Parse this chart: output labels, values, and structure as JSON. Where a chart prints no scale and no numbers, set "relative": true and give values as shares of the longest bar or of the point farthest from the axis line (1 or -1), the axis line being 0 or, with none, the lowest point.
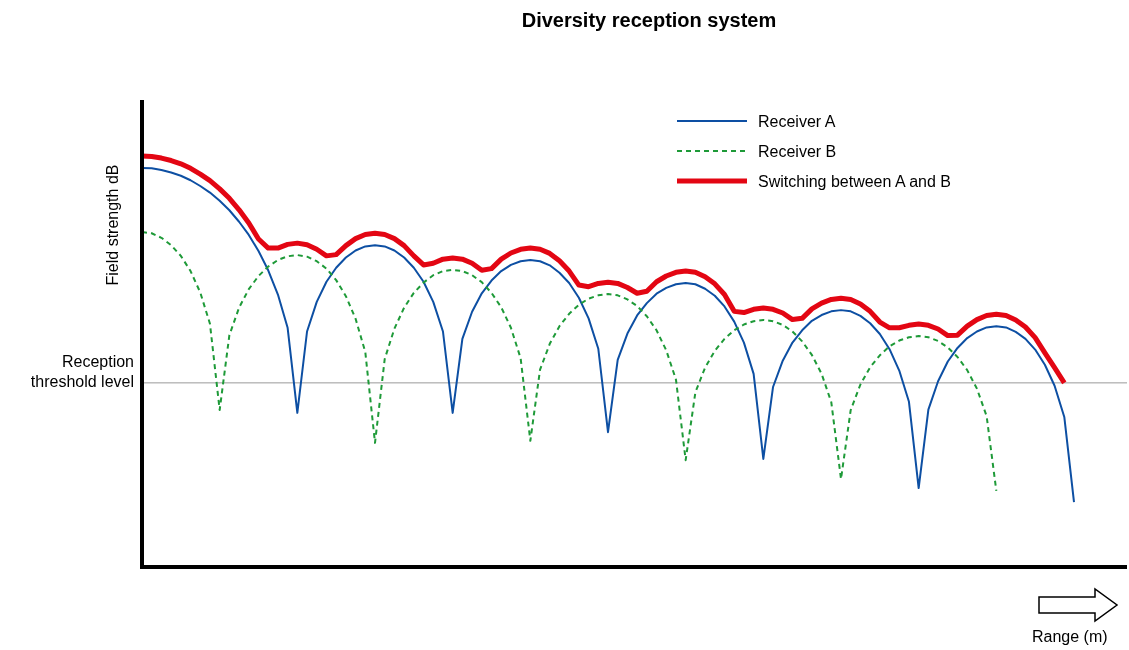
{
  "chart_data": {
    "type": "line",
    "title": "Diversity reception system",
    "ylabel": "Field strength dB",
    "xlabel": "Range (m)",
    "relative": true,
    "legend": "top right",
    "categories": [
      null,
      null,
      null,
      null,
      null,
      null,
      null,
      null,
      null,
      null,
      null,
      null,
      null,
      null,
      null,
      null,
      null,
      null,
      null,
      null,
      null,
      null,
      null,
      null,
      null,
      null,
      null,
      null,
      null,
      null,
      null,
      null,
      null,
      null,
      null,
      null,
      null,
      null,
      null,
      null,
      null,
      null,
      null,
      null,
      null,
      null,
      null,
      null,
      null,
      null,
      null,
      null,
      null,
      null,
      null,
      null,
      null,
      null,
      null,
      null,
      null,
      null,
      null,
      null,
      null,
      null,
      null,
      null,
      null,
      null,
      null,
      null,
      null,
      null,
      null,
      null,
      null,
      null,
      null,
      null,
      null,
      null,
      null,
      null,
      null,
      null,
      null,
      null,
      null,
      null,
      null,
      null,
      null,
      null,
      null,
      null,
      null
    ],
    "series": [
      {
        "name": "Receiver A",
        "color": "#0d4fa3",
        "line_style": "solid",
        "values": [
          0.971,
          0.97,
          0.966,
          0.96,
          0.952,
          0.941,
          0.927,
          0.911,
          0.891,
          0.868,
          0.84,
          0.808,
          0.769,
          0.722,
          0.663,
          0.582,
          0.375,
          0.573,
          0.645,
          0.694,
          0.728,
          0.753,
          0.77,
          0.78,
          0.783,
          0.78,
          0.77,
          0.753,
          0.728,
          0.694,
          0.645,
          0.573,
          0.375,
          0.555,
          0.621,
          0.666,
          0.697,
          0.72,
          0.735,
          0.744,
          0.747,
          0.744,
          0.734,
          0.716,
          0.691,
          0.655,
          0.605,
          0.531,
          0.328,
          0.504,
          0.568,
          0.612,
          0.642,
          0.665,
          0.679,
          0.688,
          0.691,
          0.688,
          0.677,
          0.66,
          0.634,
          0.597,
          0.546,
          0.47,
          0.263,
          0.438,
          0.502,
          0.546,
          0.576,
          0.599,
          0.613,
          0.622,
          0.625,
          0.622,
          0.611,
          0.593,
          0.567,
          0.53,
          0.478,
          0.402,
          0.192,
          0.383,
          0.452,
          0.5,
          0.533,
          0.557,
          0.573,
          0.583,
          0.586,
          0.583,
          0.572,
          0.555,
          0.529,
          0.492,
          0.441,
          0.365,
          0.158
        ]
      },
      {
        "name": "Receiver B",
        "color": "#1e9a38",
        "line_style": "dashed",
        "values": [
          0.815,
          0.812,
          0.801,
          0.783,
          0.757,
          0.72,
          0.668,
          0.592,
          0.382,
          0.564,
          0.631,
          0.676,
          0.708,
          0.731,
          0.747,
          0.756,
          0.759,
          0.755,
          0.744,
          0.726,
          0.698,
          0.659,
          0.604,
          0.523,
          0.302,
          0.506,
          0.58,
          0.631,
          0.667,
          0.692,
          0.71,
          0.72,
          0.723,
          0.72,
          0.71,
          0.693,
          0.667,
          0.632,
          0.582,
          0.508,
          0.307,
          0.48,
          0.543,
          0.586,
          0.616,
          0.638,
          0.653,
          0.661,
          0.664,
          0.661,
          0.651,
          0.635,
          0.61,
          0.576,
          0.527,
          0.456,
          0.26,
          0.425,
          0.485,
          0.526,
          0.555,
          0.576,
          0.59,
          0.598,
          0.601,
          0.598,
          0.589,
          0.573,
          0.549,
          0.516,
          0.47,
          0.401,
          0.214,
          0.382,
          0.444,
          0.486,
          0.515,
          0.537,
          0.551,
          0.559,
          0.562,
          0.559,
          0.55,
          0.534,
          0.511,
          0.479,
          0.434,
          0.367,
          0.185,
          null,
          null,
          null,
          null,
          null,
          null,
          null,
          null
        ]
      },
      {
        "name": "Switching between A and B",
        "color": "#e30613",
        "line_style": "solid",
        "values": [
          1.0,
          0.999,
          0.995,
          0.989,
          0.981,
          0.97,
          0.956,
          0.94,
          0.92,
          0.897,
          0.869,
          0.837,
          0.798,
          0.776,
          0.776,
          0.785,
          0.788,
          0.784,
          0.773,
          0.757,
          0.76,
          0.782,
          0.799,
          0.809,
          0.812,
          0.809,
          0.799,
          0.782,
          0.757,
          0.735,
          0.739,
          0.749,
          0.752,
          0.749,
          0.739,
          0.722,
          0.726,
          0.749,
          0.764,
          0.773,
          0.776,
          0.773,
          0.763,
          0.745,
          0.72,
          0.686,
          0.682,
          0.69,
          0.693,
          0.69,
          0.68,
          0.666,
          0.671,
          0.694,
          0.708,
          0.717,
          0.72,
          0.717,
          0.706,
          0.689,
          0.663,
          0.622,
          0.619,
          0.627,
          0.63,
          0.627,
          0.618,
          0.602,
          0.605,
          0.628,
          0.642,
          0.651,
          0.654,
          0.651,
          0.64,
          0.622,
          0.596,
          0.582,
          0.582,
          0.588,
          0.591,
          0.588,
          0.579,
          0.563,
          0.564,
          0.586,
          0.602,
          0.612,
          0.615,
          0.612,
          0.601,
          0.584,
          0.558,
          0.521,
          0.485,
          0.448,
          null
        ]
      }
    ],
    "ref_lines": [
      {
        "axis": "y",
        "value": 0.448,
        "label": "Reception threshold level",
        "color": "#999999"
      }
    ]
  }
}
